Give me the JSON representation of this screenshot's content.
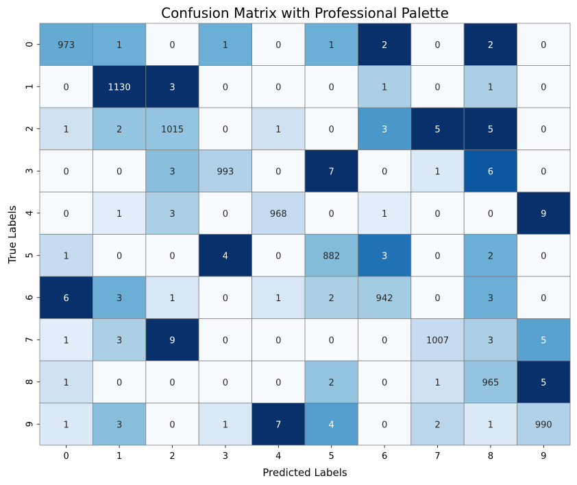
{
  "chart_data": {
    "type": "heatmap",
    "title": "Confusion Matrix with Professional Palette",
    "xlabel": "Predicted Labels",
    "ylabel": "True Labels",
    "x_categories": [
      "0",
      "1",
      "2",
      "3",
      "4",
      "5",
      "6",
      "7",
      "8",
      "9"
    ],
    "y_categories": [
      "0",
      "1",
      "2",
      "3",
      "4",
      "5",
      "6",
      "7",
      "8",
      "9"
    ],
    "matrix": [
      [
        973,
        1,
        0,
        1,
        0,
        1,
        2,
        0,
        2,
        0
      ],
      [
        0,
        1130,
        3,
        0,
        0,
        0,
        1,
        0,
        1,
        0
      ],
      [
        1,
        2,
        1015,
        0,
        1,
        0,
        3,
        5,
        5,
        0
      ],
      [
        0,
        0,
        3,
        993,
        0,
        7,
        0,
        1,
        6,
        0
      ],
      [
        0,
        1,
        3,
        0,
        968,
        0,
        1,
        0,
        0,
        9
      ],
      [
        1,
        0,
        0,
        4,
        0,
        882,
        3,
        0,
        2,
        0
      ],
      [
        6,
        3,
        1,
        0,
        1,
        2,
        942,
        0,
        3,
        0
      ],
      [
        1,
        3,
        9,
        0,
        0,
        0,
        0,
        1007,
        3,
        5
      ],
      [
        1,
        0,
        0,
        0,
        0,
        2,
        0,
        1,
        965,
        5
      ],
      [
        1,
        3,
        0,
        1,
        7,
        4,
        0,
        2,
        1,
        990
      ]
    ],
    "colormap": "Blues",
    "colorbar": false,
    "grid": true,
    "cell_border_color": "#808080"
  }
}
